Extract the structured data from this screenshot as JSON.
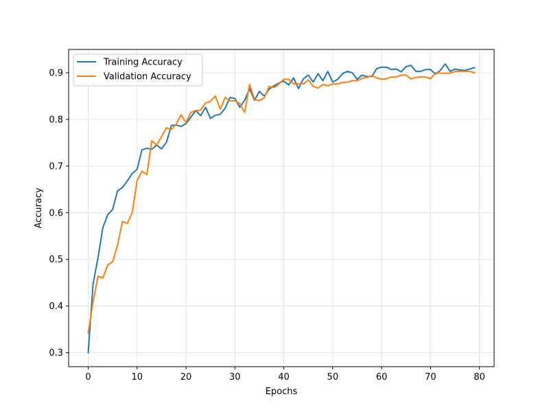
{
  "chart_data": {
    "type": "line",
    "title": "",
    "xlabel": "Epochs",
    "ylabel": "Accuracy",
    "xlim": [
      -4,
      83
    ],
    "ylim": [
      0.27,
      0.95
    ],
    "x_ticks": [
      0,
      10,
      20,
      30,
      40,
      50,
      60,
      70,
      80
    ],
    "y_ticks": [
      0.3,
      0.4,
      0.5,
      0.6,
      0.7,
      0.8,
      0.9
    ],
    "x_tick_labels": [
      "0",
      "10",
      "20",
      "30",
      "40",
      "50",
      "60",
      "70",
      "80"
    ],
    "y_tick_labels": [
      "0.3",
      "0.4",
      "0.5",
      "0.6",
      "0.7",
      "0.8",
      "0.9"
    ],
    "grid": true,
    "legend_position": "top-left",
    "series": [
      {
        "name": "Training Accuracy",
        "color": "#1f77b4",
        "values": [
          0.3,
          0.447,
          0.503,
          0.568,
          0.596,
          0.607,
          0.647,
          0.654,
          0.668,
          0.684,
          0.693,
          0.735,
          0.738,
          0.736,
          0.745,
          0.737,
          0.751,
          0.787,
          0.788,
          0.785,
          0.791,
          0.805,
          0.819,
          0.808,
          0.826,
          0.802,
          0.809,
          0.811,
          0.824,
          0.847,
          0.845,
          0.826,
          0.841,
          0.866,
          0.841,
          0.86,
          0.85,
          0.865,
          0.872,
          0.878,
          0.882,
          0.874,
          0.889,
          0.866,
          0.887,
          0.895,
          0.88,
          0.898,
          0.883,
          0.903,
          0.88,
          0.886,
          0.898,
          0.903,
          0.9,
          0.886,
          0.895,
          0.892,
          0.892,
          0.909,
          0.912,
          0.912,
          0.907,
          0.908,
          0.902,
          0.913,
          0.916,
          0.903,
          0.903,
          0.907,
          0.907,
          0.897,
          0.905,
          0.919,
          0.903,
          0.908,
          0.906,
          0.905,
          0.908,
          0.911
        ]
      },
      {
        "name": "Validation Accuracy",
        "color": "#ff7f0e",
        "values": [
          0.342,
          0.409,
          0.464,
          0.46,
          0.488,
          0.495,
          0.53,
          0.581,
          0.577,
          0.6,
          0.669,
          0.689,
          0.682,
          0.754,
          0.745,
          0.763,
          0.782,
          0.778,
          0.79,
          0.81,
          0.793,
          0.815,
          0.819,
          0.82,
          0.835,
          0.839,
          0.85,
          0.822,
          0.847,
          0.84,
          0.84,
          0.834,
          0.815,
          0.875,
          0.843,
          0.84,
          0.846,
          0.871,
          0.868,
          0.876,
          0.886,
          0.886,
          0.876,
          0.876,
          0.876,
          0.885,
          0.871,
          0.867,
          0.875,
          0.872,
          0.876,
          0.876,
          0.879,
          0.88,
          0.883,
          0.883,
          0.888,
          0.89,
          0.894,
          0.889,
          0.886,
          0.887,
          0.891,
          0.891,
          0.895,
          0.895,
          0.887,
          0.89,
          0.891,
          0.891,
          0.887,
          0.9,
          0.899,
          0.899,
          0.899,
          0.903,
          0.903,
          0.903,
          0.903,
          0.9
        ]
      }
    ]
  }
}
